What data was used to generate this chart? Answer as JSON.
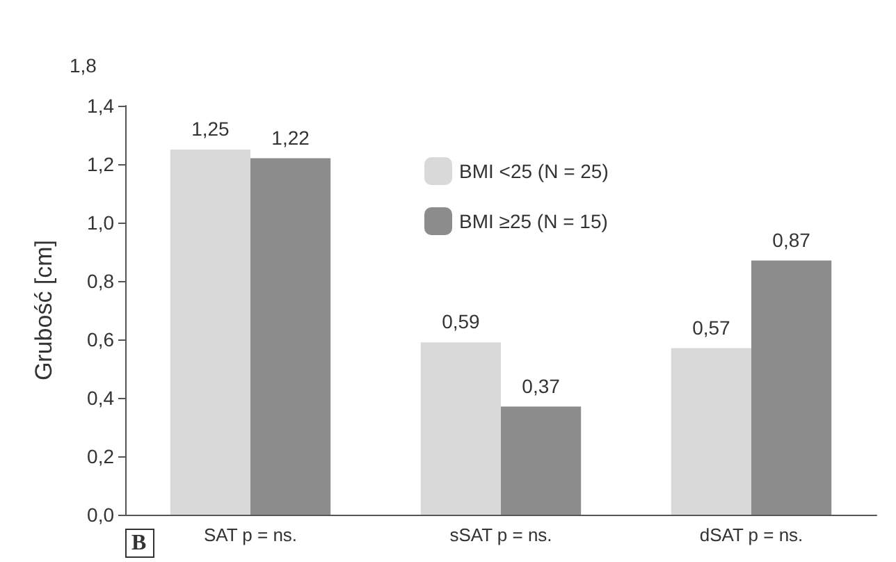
{
  "chart_data": {
    "type": "bar",
    "ylabel": "Grubość [cm]",
    "categories": [
      "SAT p = ns.",
      "sSAT p = ns.",
      "dSAT p = ns."
    ],
    "series": [
      {
        "name": "BMI <25 (N = 25)",
        "color": "#d9d9d9",
        "values": [
          1.25,
          0.59,
          0.57
        ],
        "value_labels": [
          "1,25",
          "0,59",
          "0,57"
        ]
      },
      {
        "name": "BMI ≥25 (N = 15)",
        "color": "#8c8c8c",
        "values": [
          1.22,
          0.37,
          0.87
        ],
        "value_labels": [
          "1,22",
          "0,37",
          "0,87"
        ]
      }
    ],
    "ylim": [
      0,
      1.4
    ],
    "yticks": [
      {
        "value": 0,
        "label": "0,0"
      },
      {
        "value": 0.2,
        "label": "0,2"
      },
      {
        "value": 0.4,
        "label": "0,4"
      },
      {
        "value": 0.6,
        "label": "0,6"
      },
      {
        "value": 0.8,
        "label": "0,8"
      },
      {
        "value": 1,
        "label": "1,0"
      },
      {
        "value": 1.2,
        "label": "1,2"
      },
      {
        "value": 1.4,
        "label": "1,4"
      }
    ],
    "grid": false,
    "legend": "top right",
    "annotations": [
      "1,8",
      "B"
    ]
  }
}
